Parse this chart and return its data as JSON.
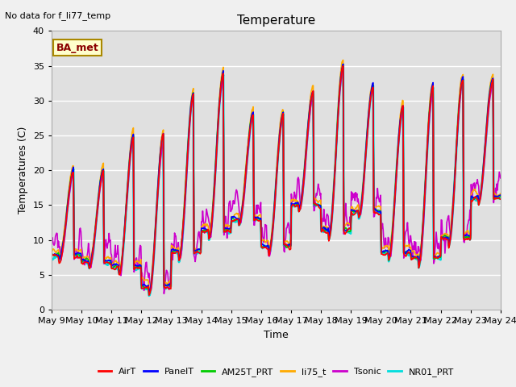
{
  "title": "Temperature",
  "xlabel": "Time",
  "ylabel": "Temperatures (C)",
  "annotation": "No data for f_li77_temp",
  "legend_label": "BA_met",
  "ylim": [
    0,
    40
  ],
  "series_colors": {
    "AirT": "#ff0000",
    "PanelT": "#0000ff",
    "AM25T_PRT": "#00cc00",
    "li75_t": "#ffaa00",
    "Tsonic": "#cc00cc",
    "NR01_PRT": "#00dddd"
  },
  "series_lw": {
    "AirT": 1.2,
    "PanelT": 1.2,
    "AM25T_PRT": 1.2,
    "li75_t": 1.2,
    "Tsonic": 1.2,
    "NR01_PRT": 2.0
  },
  "xtick_labels": [
    "May 9",
    "May 10",
    "May 11",
    "May 12",
    "May 13",
    "May 14",
    "May 15",
    "May 16",
    "May 17",
    "May 18",
    "May 19",
    "May 20",
    "May 21",
    "May 22",
    "May 23",
    "May 24"
  ],
  "background_color": "#e0e0e0",
  "grid_color": "#ffffff",
  "yticks": [
    0,
    5,
    10,
    15,
    20,
    25,
    30,
    35,
    40
  ],
  "figsize": [
    6.4,
    4.8
  ],
  "dpi": 100
}
